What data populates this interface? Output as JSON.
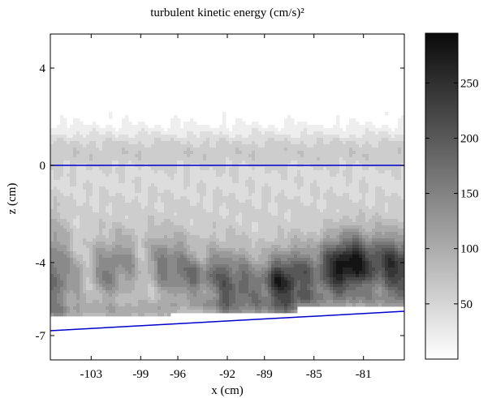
{
  "chart_data": {
    "type": "heatmap",
    "title": "turbulent kinetic energy (cm/s)²",
    "xlabel": "x (cm)",
    "ylabel": "z (cm)",
    "xlim": [
      -106.3,
      -77.7
    ],
    "ylim": [
      -8.0,
      5.4
    ],
    "x_ticks": [
      {
        "value": -103,
        "label": "-103"
      },
      {
        "value": -99,
        "label": "-99"
      },
      {
        "value": -96,
        "label": "-96"
      },
      {
        "value": -92,
        "label": "-92"
      },
      {
        "value": -89,
        "label": "-89"
      },
      {
        "value": -85,
        "label": "-85"
      },
      {
        "value": -81,
        "label": "-81"
      }
    ],
    "y_ticks": [
      {
        "value": 4,
        "label": "4"
      },
      {
        "value": 0,
        "label": "0"
      },
      {
        "value": -4,
        "label": "-4"
      },
      {
        "value": -7,
        "label": "-7"
      }
    ],
    "colorbar": {
      "range": [
        0,
        295
      ],
      "ticks": [
        {
          "value": 50,
          "label": "50"
        },
        {
          "value": 100,
          "label": "100"
        },
        {
          "value": 150,
          "label": "150"
        },
        {
          "value": 200,
          "label": "200"
        },
        {
          "value": 250,
          "label": "250"
        }
      ],
      "colormap": "gray (white = low, black = high)"
    },
    "reference_lines": [
      {
        "name": "water surface",
        "color": "#0000cc",
        "points": [
          [
            -106.3,
            0.0
          ],
          [
            -77.7,
            0.0
          ]
        ]
      },
      {
        "name": "bed",
        "color": "#0000cc",
        "points": [
          [
            -106.3,
            -6.8
          ],
          [
            -77.7,
            -6.0
          ]
        ]
      }
    ],
    "contour_levels": [
      15,
      35,
      55,
      75,
      95,
      115,
      135,
      155,
      175,
      195,
      215,
      235,
      255,
      275
    ]
  },
  "colors": {
    "reference_line": "#0000cc",
    "background": "#ffffff",
    "contour_line": "#000000"
  }
}
